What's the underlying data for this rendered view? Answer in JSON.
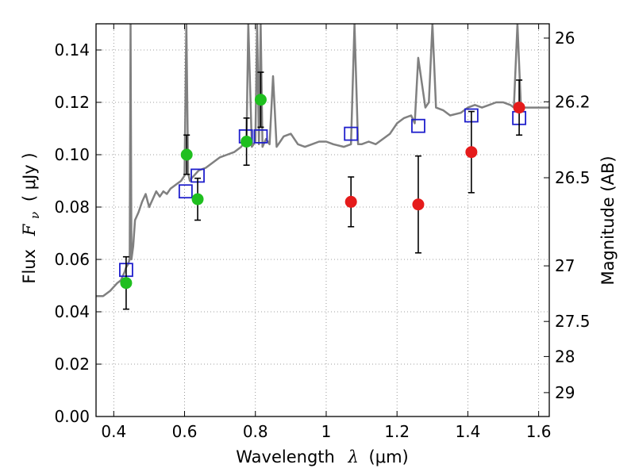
{
  "chart_data": {
    "type": "scatter",
    "xlabel": "Wavelength  λ (μm)",
    "xlabel_prefix": "Wavelength",
    "xlabel_symbol": "λ",
    "xlabel_units": "(μm)",
    "ylabel": "Flux  Fν ( μJy )",
    "ylabel_prefix": "Flux",
    "ylabel_symbol": "F",
    "ylabel_subscript": "ν",
    "ylabel_units": "( μJy )",
    "right_ylabel": "Magnitude (AB)",
    "xlim": [
      0.35,
      1.63
    ],
    "ylim": [
      0.0,
      0.15
    ],
    "grid": true,
    "x_ticks": [
      {
        "value": 0.4,
        "label": "0.4"
      },
      {
        "value": 0.6,
        "label": "0.6"
      },
      {
        "value": 0.8,
        "label": "0.8"
      },
      {
        "value": 1.0,
        "label": "1"
      },
      {
        "value": 1.2,
        "label": "1.2"
      },
      {
        "value": 1.4,
        "label": "1.4"
      },
      {
        "value": 1.6,
        "label": "1.6"
      }
    ],
    "y_ticks": [
      {
        "value": 0.0,
        "label": "0.00"
      },
      {
        "value": 0.02,
        "label": "0.02"
      },
      {
        "value": 0.04,
        "label": "0.04"
      },
      {
        "value": 0.06,
        "label": "0.06"
      },
      {
        "value": 0.08,
        "label": "0.08"
      },
      {
        "value": 0.1,
        "label": "0.10"
      },
      {
        "value": 0.12,
        "label": "0.12"
      },
      {
        "value": 0.14,
        "label": "0.14"
      }
    ],
    "right_ticks": [
      {
        "value": 26,
        "label": "26"
      },
      {
        "value": 26.2,
        "label": "26.2"
      },
      {
        "value": 26.5,
        "label": "26.5"
      },
      {
        "value": 27,
        "label": "27"
      },
      {
        "value": 27.5,
        "label": "27.5"
      },
      {
        "value": 28,
        "label": "28"
      },
      {
        "value": 29,
        "label": "29"
      }
    ],
    "colors": {
      "model": "#808080",
      "green": "#1fbf1f",
      "red": "#e51b1b",
      "square": "#1f1fcc",
      "error": "#000000",
      "grid": "#808080"
    },
    "series": [
      {
        "name": "model_spectrum",
        "kind": "line",
        "x": [
          0.35,
          0.37,
          0.39,
          0.41,
          0.42,
          0.43,
          0.435,
          0.44,
          0.445,
          0.4475,
          0.45,
          0.455,
          0.46,
          0.47,
          0.48,
          0.49,
          0.5,
          0.51,
          0.52,
          0.53,
          0.54,
          0.55,
          0.56,
          0.57,
          0.58,
          0.59,
          0.6,
          0.605,
          0.61,
          0.615,
          0.62,
          0.64,
          0.66,
          0.68,
          0.7,
          0.72,
          0.74,
          0.76,
          0.775,
          0.78,
          0.79,
          0.8,
          0.805,
          0.81,
          0.815,
          0.82,
          0.83,
          0.84,
          0.85,
          0.86,
          0.87,
          0.88,
          0.9,
          0.92,
          0.94,
          0.96,
          0.98,
          1.0,
          1.02,
          1.05,
          1.07,
          1.08,
          1.09,
          1.1,
          1.12,
          1.14,
          1.16,
          1.18,
          1.2,
          1.22,
          1.24,
          1.25,
          1.26,
          1.28,
          1.29,
          1.3,
          1.31,
          1.33,
          1.35,
          1.38,
          1.4,
          1.42,
          1.44,
          1.46,
          1.48,
          1.5,
          1.52,
          1.53,
          1.54,
          1.55,
          1.56,
          1.58,
          1.6,
          1.63
        ],
        "y": [
          0.046,
          0.046,
          0.048,
          0.051,
          0.052,
          0.055,
          0.057,
          0.058,
          0.06,
          0.15,
          0.06,
          0.065,
          0.075,
          0.078,
          0.082,
          0.085,
          0.08,
          0.083,
          0.086,
          0.084,
          0.086,
          0.085,
          0.087,
          0.088,
          0.089,
          0.09,
          0.092,
          0.15,
          0.093,
          0.09,
          0.091,
          0.094,
          0.095,
          0.097,
          0.099,
          0.1,
          0.101,
          0.103,
          0.106,
          0.15,
          0.103,
          0.105,
          0.15,
          0.104,
          0.15,
          0.103,
          0.106,
          0.104,
          0.13,
          0.103,
          0.105,
          0.107,
          0.108,
          0.104,
          0.103,
          0.104,
          0.105,
          0.105,
          0.104,
          0.103,
          0.104,
          0.15,
          0.104,
          0.104,
          0.105,
          0.104,
          0.106,
          0.108,
          0.112,
          0.114,
          0.115,
          0.112,
          0.137,
          0.118,
          0.12,
          0.15,
          0.118,
          0.117,
          0.115,
          0.116,
          0.118,
          0.119,
          0.118,
          0.119,
          0.12,
          0.12,
          0.119,
          0.118,
          0.15,
          0.118,
          0.118,
          0.118,
          0.118,
          0.118
        ]
      },
      {
        "name": "model_photometry",
        "kind": "square",
        "x": [
          0.435,
          0.603,
          0.637,
          0.773,
          0.815,
          1.07,
          1.26,
          1.41,
          1.545
        ],
        "y": [
          0.056,
          0.086,
          0.092,
          0.107,
          0.107,
          0.108,
          0.111,
          0.115,
          0.114
        ]
      },
      {
        "name": "observed_optical",
        "kind": "point",
        "color": "green",
        "x": [
          0.435,
          0.606,
          0.637,
          0.775,
          0.815
        ],
        "y": [
          0.051,
          0.1,
          0.083,
          0.105,
          0.121
        ],
        "err": [
          0.01,
          0.0075,
          0.008,
          0.009,
          0.0105
        ]
      },
      {
        "name": "observed_nir",
        "kind": "point",
        "color": "red",
        "x": [
          1.07,
          1.26,
          1.41,
          1.545
        ],
        "y": [
          0.082,
          0.081,
          0.101,
          0.118
        ],
        "err": [
          0.0095,
          0.0185,
          0.0155,
          0.0105
        ]
      }
    ]
  }
}
